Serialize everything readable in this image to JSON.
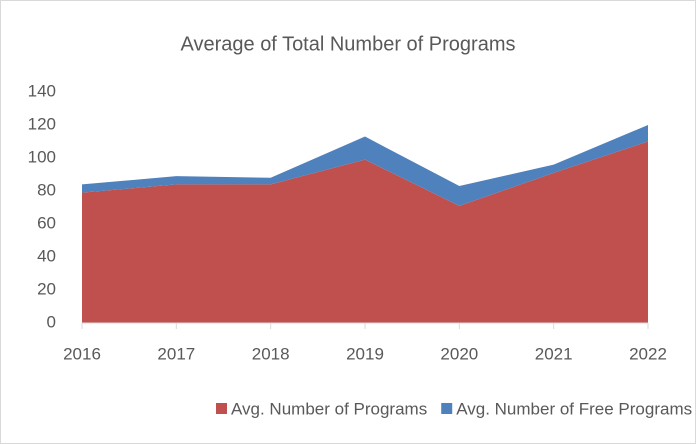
{
  "chart_data": {
    "type": "area",
    "stacked": true,
    "title": "Average of Total Number of Programs",
    "categories": [
      "2016",
      "2017",
      "2018",
      "2019",
      "2020",
      "2021",
      "2022"
    ],
    "series": [
      {
        "name": "Avg. Number of Programs",
        "color": "#c0504d",
        "values": [
          79,
          84,
          84,
          99,
          71,
          91,
          110
        ]
      },
      {
        "name": "Avg. Number of Free Programs",
        "color": "#4f81bd",
        "values": [
          5,
          5,
          4,
          14,
          12,
          5,
          10
        ]
      }
    ],
    "ylim": [
      0,
      140
    ],
    "yticks": [
      0,
      20,
      40,
      60,
      80,
      100,
      120,
      140
    ],
    "grid": false,
    "legend": "bottom"
  }
}
